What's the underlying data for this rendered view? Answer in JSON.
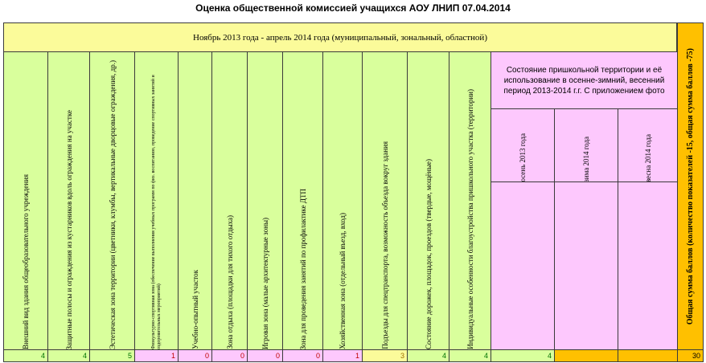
{
  "title": "Оценка общественной комиссией учащихся АОУ ЛНИП 07.04.2014",
  "period_header": "Ноябрь 2013 года - апрель 2014 года (муниципальный, зональный, областной)",
  "columns": [
    {
      "label": "Внешний вид здания общеобразовательного учреждения",
      "value": "4"
    },
    {
      "label": "Защитные полосы и ограждения из кустарников вдоль ограждения на участке",
      "value": "4"
    },
    {
      "label": "Эстетическая зона территории (цветники, клумбы, вертикальные дворцовые ограждения, др.)",
      "value": "5"
    },
    {
      "label": "Физкультурно-спортивная зона (обеспечение выполнения учебных программ по физ. воспитанию, проведение спортивных занятий и оздоровительных мероприятий)",
      "value": "1"
    },
    {
      "label": "Учебно-опытный участок",
      "value": "0"
    },
    {
      "label": "Зона отдыха (площадки для тихого отдыха)",
      "value": "0"
    },
    {
      "label": "Игровая зона (малые архитектурные зоны)",
      "value": "0"
    },
    {
      "label": "Зона для проведения занятий по профилактике ДТП",
      "value": "0"
    },
    {
      "label": "Хозяйственная зона (отдельный въезд, вход)",
      "value": "1"
    },
    {
      "label": "Подъезды для спецтранспорта, возможность объезда вокруг здания",
      "value": "3"
    },
    {
      "label": "Состояние дорожек, площадок, проездов (твердые, мощёные)",
      "value": "4"
    },
    {
      "label": "Индивидуальные особенности благоустройства пришкольного участка (территории)",
      "value": "4"
    }
  ],
  "seasonal": {
    "header": "Состояние пришкольной территории и её использование в осенне-зимний, весенний период 2013-2014 г.г. С приложением фото",
    "items": [
      {
        "label": "осень 2013 года",
        "value": "4"
      },
      {
        "label": "зима 2014 года",
        "value": ""
      },
      {
        "label": "весна 2014 года",
        "value": ""
      }
    ]
  },
  "total": {
    "label": "Общая сумма баллов (количество показателей -15, общая сумма баллов -75)",
    "value": "30"
  }
}
